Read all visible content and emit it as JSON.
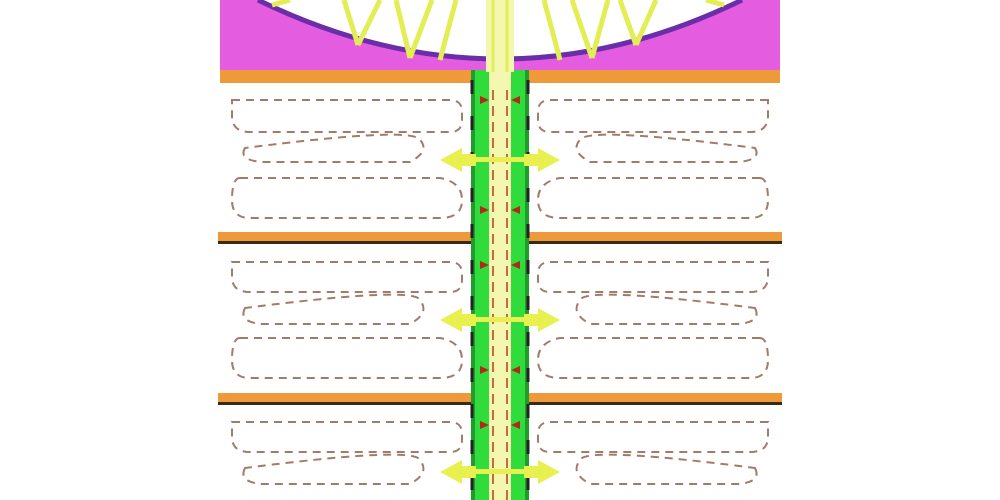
{
  "colors": {
    "background": "#ffffff",
    "tank_fill": "#e45ce0",
    "tank_bowl": "#ffffff",
    "tank_rim": "#6a2ea8",
    "support_lines": "#e2ee54",
    "orange_baffle": "#ee9a3a",
    "baffle_shadow": "#3a2a10",
    "shaft_green": "#2fdc3c",
    "shaft_green_dark": "#1f9c2a",
    "shaft_core": "#f3f7b0",
    "shaft_dashes": "#c86a3a",
    "flow_loops": "#a47a68",
    "yellow_arrows": "#e8f050",
    "red_arrows": "#b02a1a"
  }
}
